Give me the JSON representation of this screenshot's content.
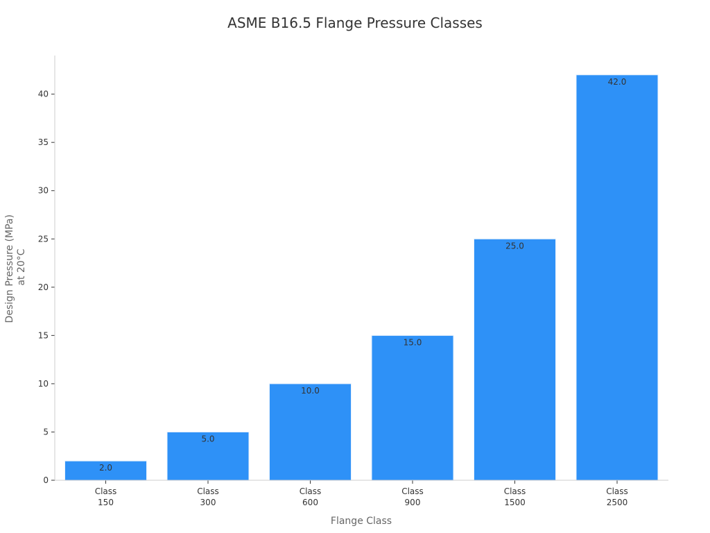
{
  "chart_data": {
    "type": "bar",
    "title": "ASME B16.5 Flange Pressure Classes",
    "xlabel": "Flange Class",
    "ylabel_lines": [
      "Design Pressure (MPa)",
      "at 20°C"
    ],
    "categories": [
      [
        "Class",
        "150"
      ],
      [
        "Class",
        "300"
      ],
      [
        "Class",
        "600"
      ],
      [
        "Class",
        "900"
      ],
      [
        "Class",
        "1500"
      ],
      [
        "Class",
        "2500"
      ]
    ],
    "values": [
      2.0,
      5.0,
      10.0,
      15.0,
      25.0,
      42.0
    ],
    "data_labels": [
      "2.0",
      "5.0",
      "10.0",
      "15.0",
      "25.0",
      "42.0"
    ],
    "ylim": [
      0,
      44
    ],
    "yticks": [
      0,
      5,
      10,
      15,
      20,
      25,
      30,
      35,
      40
    ],
    "grid": false,
    "legend": "none",
    "colors": {
      "bar": "#2e91f7",
      "bar_edge": "#e8f2fc"
    }
  }
}
